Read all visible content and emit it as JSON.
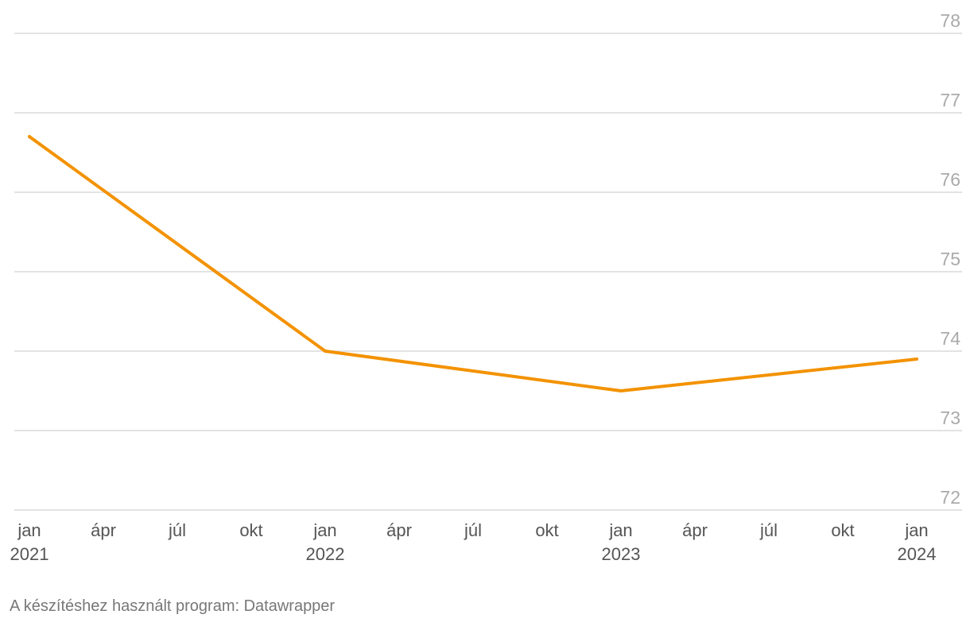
{
  "chart_data": {
    "type": "line",
    "title": "",
    "xlabel": "",
    "ylabel": "",
    "ylim": [
      72,
      78
    ],
    "y_ticks": [
      72,
      73,
      74,
      75,
      76,
      77,
      78
    ],
    "grid": true,
    "x_ticks": [
      {
        "t": 0,
        "line1": "jan",
        "line2": "2021"
      },
      {
        "t": 3,
        "line1": "ápr",
        "line2": ""
      },
      {
        "t": 6,
        "line1": "júl",
        "line2": ""
      },
      {
        "t": 9,
        "line1": "okt",
        "line2": ""
      },
      {
        "t": 12,
        "line1": "jan",
        "line2": "2022"
      },
      {
        "t": 15,
        "line1": "ápr",
        "line2": ""
      },
      {
        "t": 18,
        "line1": "júl",
        "line2": ""
      },
      {
        "t": 21,
        "line1": "okt",
        "line2": ""
      },
      {
        "t": 24,
        "line1": "jan",
        "line2": "2023"
      },
      {
        "t": 27,
        "line1": "ápr",
        "line2": ""
      },
      {
        "t": 30,
        "line1": "júl",
        "line2": ""
      },
      {
        "t": 33,
        "line1": "okt",
        "line2": ""
      },
      {
        "t": 36,
        "line1": "jan",
        "line2": "2024"
      }
    ],
    "xlim": [
      0,
      36
    ],
    "series": [
      {
        "name": "",
        "color": "#f39200",
        "points": [
          {
            "t": 0,
            "label": "jan 2021",
            "value": 76.7
          },
          {
            "t": 12,
            "label": "jan 2022",
            "value": 74.0
          },
          {
            "t": 24,
            "label": "jan 2023",
            "value": 73.5
          },
          {
            "t": 36,
            "label": "jan 2024",
            "value": 73.9
          }
        ]
      }
    ]
  },
  "footer": {
    "credit": "A készítéshez használt program: Datawrapper"
  }
}
